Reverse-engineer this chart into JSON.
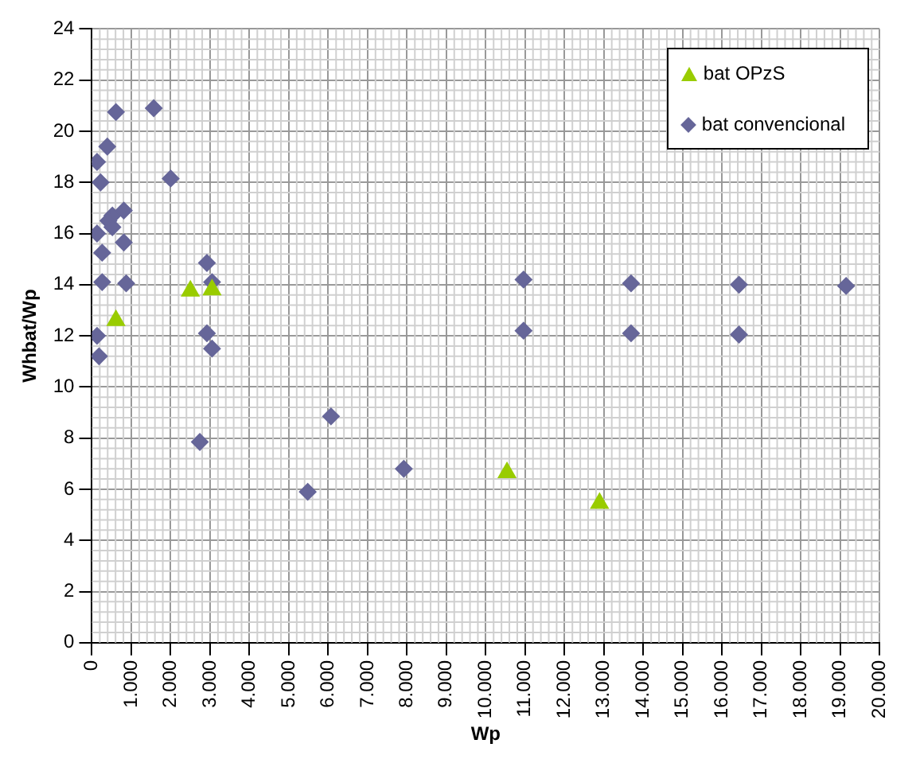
{
  "chart_data": {
    "type": "scatter",
    "xlabel": "Wp",
    "ylabel": "Whbat/Wp",
    "xlim": [
      0,
      20000
    ],
    "xticks": [
      0,
      {
        "value": 1000,
        "label": "1.000"
      },
      {
        "value": 2000,
        "label": "2.000"
      },
      {
        "value": 3000,
        "label": "3.000"
      },
      {
        "value": 4000,
        "label": "4.000"
      },
      {
        "value": 5000,
        "label": "5.000"
      },
      {
        "value": 6000,
        "label": "6.000"
      },
      {
        "value": 7000,
        "label": "7.000"
      },
      {
        "value": 8000,
        "label": "8.000"
      },
      {
        "value": 9000,
        "label": "9.000"
      },
      {
        "value": 10000,
        "label": "10.000"
      },
      {
        "value": 11000,
        "label": "11.000"
      },
      {
        "value": 12000,
        "label": "12.000"
      },
      {
        "value": 13000,
        "label": "13.000"
      },
      {
        "value": 14000,
        "label": "14.000"
      },
      {
        "value": 15000,
        "label": "15.000"
      },
      {
        "value": 16000,
        "label": "16.000"
      },
      {
        "value": 17000,
        "label": "17.000"
      },
      {
        "value": 18000,
        "label": "18.000"
      },
      {
        "value": 19000,
        "label": "19.000"
      },
      {
        "value": 20000,
        "label": "20.000"
      }
    ],
    "ylim": [
      0,
      24
    ],
    "yticks": [
      0,
      2,
      4,
      6,
      8,
      10,
      12,
      14,
      16,
      18,
      20,
      22,
      24
    ],
    "grid": true,
    "legend": "top right",
    "series": [
      {
        "name": "bat OPzS",
        "color": "#99cc00",
        "marker": "triangle",
        "x": [
          610,
          2500,
          3050,
          10540,
          12890
        ],
        "values": [
          12.6,
          13.75,
          13.8,
          6.65,
          5.45
        ]
      },
      {
        "name": "bat convencional",
        "color": "#666699",
        "marker": "diamond",
        "x": [
          610,
          1570,
          390,
          130,
          220,
          2000,
          810,
          520,
          420,
          520,
          130,
          260,
          810,
          260,
          870,
          130,
          180,
          2920,
          3050,
          2920,
          3050,
          2740,
          6070,
          5480,
          10960,
          10960,
          13690,
          13690,
          16430,
          16430,
          19150,
          7920
        ],
        "values": [
          20.75,
          20.9,
          19.4,
          18.8,
          18.0,
          18.15,
          16.9,
          16.7,
          16.5,
          16.25,
          16.0,
          15.25,
          15.65,
          14.1,
          14.05,
          12.0,
          11.2,
          14.85,
          14.1,
          12.1,
          11.5,
          7.85,
          8.85,
          5.9,
          14.2,
          12.2,
          14.05,
          12.1,
          14.0,
          12.05,
          13.95,
          6.8
        ]
      }
    ]
  }
}
